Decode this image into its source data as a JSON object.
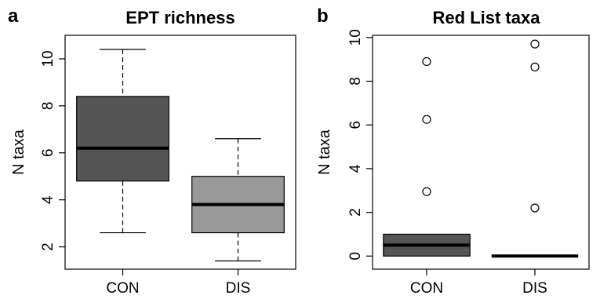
{
  "chart_data": [
    {
      "type": "box",
      "panel_letter": "a",
      "title": "EPT richness",
      "xlabel": "",
      "ylabel": "N taxa",
      "ylim": [
        1.05,
        11.0
      ],
      "yticks": [
        2,
        4,
        6,
        8,
        10
      ],
      "categories": [
        "CON",
        "DIS"
      ],
      "boxes": [
        {
          "category": "CON",
          "whisker_low": 2.6,
          "q1": 4.8,
          "median": 6.2,
          "q3": 8.4,
          "whisker_high": 10.4,
          "outliers": [],
          "fill": "#555555"
        },
        {
          "category": "DIS",
          "whisker_low": 1.4,
          "q1": 2.6,
          "median": 3.8,
          "q3": 5.0,
          "whisker_high": 6.6,
          "outliers": [],
          "fill": "#999999"
        }
      ]
    },
    {
      "type": "box",
      "panel_letter": "b",
      "title": "Red List taxa",
      "xlabel": "",
      "ylabel": "N taxa",
      "ylim": [
        -0.6,
        10.1
      ],
      "yticks": [
        0,
        2,
        4,
        6,
        8,
        10
      ],
      "categories": [
        "CON",
        "DIS"
      ],
      "boxes": [
        {
          "category": "CON",
          "whisker_low": 0.0,
          "q1": 0.0,
          "median": 0.5,
          "q3": 1.0,
          "whisker_high": 1.0,
          "outliers": [
            2.95,
            6.25,
            8.9
          ],
          "fill": "#555555"
        },
        {
          "category": "DIS",
          "whisker_low": 0.0,
          "q1": 0.0,
          "median": 0.0,
          "q3": 0.0,
          "whisker_high": 0.0,
          "outliers": [
            2.2,
            8.65,
            9.7
          ],
          "fill": "#999999"
        }
      ]
    }
  ]
}
